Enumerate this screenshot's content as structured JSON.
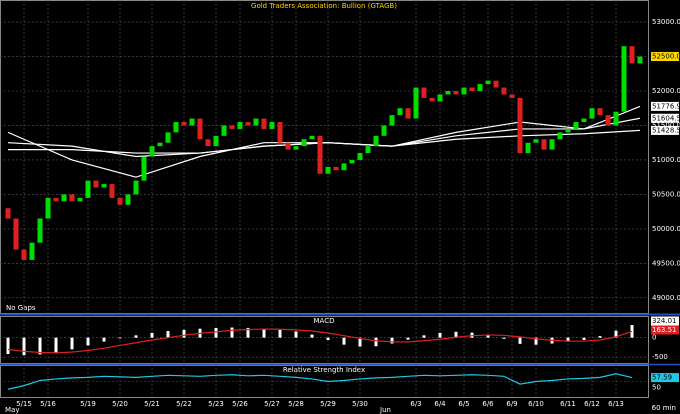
{
  "chart_data": [
    {
      "type": "candlestick",
      "title": "Gold Traders Association: Bullion (GTAGB)",
      "note": "No Gaps",
      "categories": [
        null,
        null,
        "5/15",
        null,
        null,
        "5/16",
        null,
        null,
        null,
        null,
        "5/19",
        null,
        null,
        null,
        "5/20",
        null,
        null,
        null,
        "5/21",
        null,
        null,
        null,
        "5/22",
        null,
        null,
        null,
        "5/23",
        null,
        null,
        "5/26",
        null,
        null,
        null,
        "5/27",
        null,
        null,
        "5/28",
        null,
        null,
        null,
        "5/29",
        null,
        null,
        null,
        "5/30",
        null,
        null,
        null,
        null,
        null,
        null,
        "6/3",
        null,
        null,
        "6/4",
        null,
        null,
        "6/5",
        null,
        null,
        "6/6",
        null,
        null,
        "6/9",
        null,
        null,
        "6/10",
        null,
        null,
        null,
        "6/11",
        null,
        null,
        "6/12",
        null,
        null,
        "6/13",
        null,
        null,
        null
      ],
      "open": [
        50300,
        50150,
        49700,
        49550,
        49800,
        50150,
        50450,
        50400,
        50500,
        50400,
        50450,
        50700,
        50600,
        50650,
        50450,
        50350,
        50500,
        50700,
        51050,
        51200,
        51250,
        51400,
        51550,
        51500,
        51600,
        51300,
        51200,
        51350,
        51500,
        51450,
        51550,
        51500,
        51600,
        51450,
        51550,
        51250,
        51150,
        51200,
        51300,
        51350,
        50800,
        50900,
        50850,
        50950,
        51000,
        51100,
        51200,
        51350,
        51500,
        51650,
        51750,
        51600,
        52050,
        51900,
        51850,
        51950,
        52000,
        51950,
        52050,
        52000,
        52100,
        52150,
        52050,
        51950,
        51900,
        51100,
        51250,
        51300,
        51150,
        51300,
        51400,
        51450,
        51550,
        51600,
        51750,
        51650,
        51500,
        51700,
        52650,
        52400
      ],
      "close": [
        50150,
        49700,
        49550,
        49800,
        50150,
        50450,
        50400,
        50500,
        50400,
        50450,
        50700,
        50600,
        50650,
        50450,
        50350,
        50500,
        50700,
        51050,
        51200,
        51250,
        51400,
        51550,
        51500,
        51600,
        51300,
        51200,
        51350,
        51500,
        51450,
        51550,
        51500,
        51600,
        51450,
        51550,
        51250,
        51150,
        51200,
        51300,
        51350,
        50800,
        50900,
        50850,
        50950,
        51000,
        51100,
        51200,
        51350,
        51500,
        51650,
        51750,
        51600,
        52050,
        51900,
        51850,
        51950,
        52000,
        51950,
        52050,
        52000,
        52100,
        52150,
        52050,
        51950,
        51900,
        51100,
        51250,
        51300,
        51150,
        51300,
        51400,
        51450,
        51550,
        51600,
        51750,
        51650,
        51500,
        51700,
        52650,
        52400,
        52500
      ],
      "up_color": "#00e000",
      "down_color": "#e02020",
      "last_price": {
        "value": 52500,
        "label": "52500.00"
      },
      "ylim": [
        48780,
        53320
      ],
      "yticks": [
        {
          "value": 49000,
          "label": "49000.00"
        },
        {
          "value": 49500,
          "label": "49500.00"
        },
        {
          "value": 50000,
          "label": "50000.00"
        },
        {
          "value": 50500,
          "label": "50500.00"
        },
        {
          "value": 51000,
          "label": "51000.00"
        },
        {
          "value": 51500,
          "label": "51500.00"
        },
        {
          "value": 52000,
          "label": "52000.00"
        },
        {
          "value": 52500,
          "label": "52500.00"
        },
        {
          "value": 53000,
          "label": "53000.00"
        }
      ],
      "ma": {
        "x": [
          0,
          8,
          16,
          24,
          32,
          40,
          48,
          56,
          64,
          72,
          79
        ],
        "color": "#ffffff",
        "series": [
          {
            "values": [
              51400,
              51000,
              50750,
              51050,
              51250,
              51250,
              51200,
              51400,
              51550,
              51450,
              51776.93
            ]
          },
          {
            "values": [
              51250,
              51200,
              51050,
              51100,
              51200,
              51250,
              51200,
              51350,
              51450,
              51450,
              51604.51
            ]
          },
          {
            "values": [
              51150,
              51150,
              51100,
              51100,
              51200,
              51250,
              51200,
              51300,
              51350,
              51380,
              51428.58
            ]
          }
        ]
      },
      "months": [
        "May",
        "Jun"
      ],
      "interval": "60 min"
    },
    {
      "type": "macd",
      "title": "MACD",
      "x": [
        0,
        2,
        4,
        6,
        8,
        10,
        12,
        14,
        16,
        18,
        20,
        22,
        24,
        26,
        28,
        30,
        32,
        34,
        36,
        38,
        40,
        42,
        44,
        46,
        48,
        50,
        52,
        54,
        56,
        58,
        60,
        62,
        64,
        66,
        68,
        70,
        72,
        74,
        76,
        78
      ],
      "histogram": [
        -420,
        -450,
        -430,
        -380,
        -300,
        -200,
        -100,
        -20,
        60,
        120,
        170,
        200,
        230,
        250,
        260,
        250,
        230,
        200,
        160,
        80,
        -60,
        -180,
        -230,
        -220,
        -150,
        -50,
        60,
        120,
        150,
        130,
        80,
        -30,
        -160,
        -180,
        -150,
        -100,
        -60,
        40,
        180,
        324.01
      ],
      "signal": [
        -300,
        -350,
        -380,
        -390,
        -370,
        -330,
        -270,
        -200,
        -130,
        -60,
        0,
        60,
        110,
        150,
        190,
        210,
        220,
        215,
        200,
        170,
        120,
        50,
        -20,
        -80,
        -110,
        -110,
        -80,
        -40,
        10,
        50,
        70,
        60,
        20,
        -30,
        -70,
        -90,
        -90,
        -60,
        20,
        163.51
      ],
      "histogram_color": "#ffffff",
      "signal_color": "#e02020",
      "ylim": [
        -650,
        530
      ],
      "yticks": [
        0,
        -500
      ]
    },
    {
      "type": "rsi",
      "title": "Relative Strength Index",
      "x": [
        0,
        2,
        4,
        6,
        8,
        10,
        12,
        14,
        16,
        18,
        20,
        22,
        24,
        26,
        28,
        30,
        32,
        34,
        36,
        38,
        40,
        42,
        44,
        46,
        48,
        50,
        52,
        54,
        56,
        58,
        60,
        62,
        64,
        66,
        68,
        70,
        72,
        74,
        76,
        78
      ],
      "values": [
        35,
        42,
        52,
        55,
        57,
        58,
        60,
        59,
        58,
        60,
        62,
        61,
        60,
        62,
        63,
        61,
        62,
        60,
        58,
        55,
        50,
        52,
        55,
        57,
        58,
        60,
        62,
        61,
        62,
        63,
        62,
        60,
        45,
        50,
        52,
        55,
        56,
        58,
        65,
        57.59
      ],
      "color": "#1ec8e6",
      "ylim": [
        20,
        80
      ],
      "yticks": [
        50
      ]
    }
  ]
}
